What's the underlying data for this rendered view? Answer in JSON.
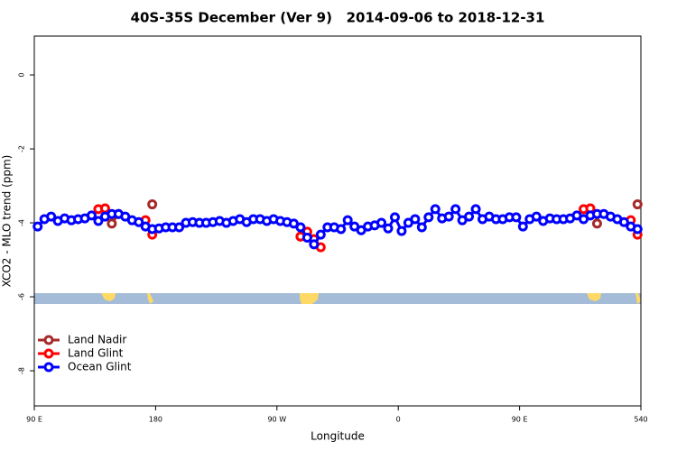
{
  "chart_data": {
    "type": "line",
    "title": "40S-35S December (Ver 9)   2014-09-06 to 2018-12-31",
    "xlabel": "Longitude",
    "ylabel": "XCO2 - MLO trend (ppm)",
    "x": [
      92.5,
      97.5,
      102.5,
      107.5,
      112.5,
      117.5,
      122.5,
      127.5,
      132.5,
      137.5,
      142.5,
      147.5,
      152.5,
      157.5,
      162.5,
      167.5,
      172.5,
      177.5,
      182.5,
      187.5,
      192.5,
      197.5,
      202.5,
      207.5,
      212.5,
      217.5,
      222.5,
      227.5,
      232.5,
      237.5,
      242.5,
      247.5,
      252.5,
      257.5,
      262.5,
      267.5,
      272.5,
      277.5,
      282.5,
      287.5,
      292.5,
      297.5,
      302.5,
      307.5,
      312.5,
      317.5,
      322.5,
      327.5,
      332.5,
      337.5,
      342.5,
      347.5,
      352.5,
      357.5,
      362.5,
      367.5,
      372.5,
      377.5,
      382.5,
      387.5,
      392.5,
      397.5,
      402.5,
      407.5,
      412.5,
      417.5,
      422.5,
      427.5,
      432.5,
      437.5,
      442.5,
      447.5,
      452.5,
      457.5,
      462.5,
      467.5,
      472.5,
      477.5,
      482.5,
      487.5,
      492.5,
      497.5,
      502.5,
      507.5,
      512.5,
      517.5,
      522.5,
      527.5,
      532.5,
      537.5
    ],
    "series": [
      {
        "name": "Land Nadir",
        "color": "#a52a2a",
        "values": [
          null,
          null,
          null,
          null,
          null,
          null,
          null,
          null,
          null,
          null,
          null,
          -4.02,
          -3.76,
          null,
          null,
          null,
          null,
          -3.5,
          null,
          null,
          null,
          null,
          null,
          null,
          null,
          null,
          null,
          null,
          null,
          null,
          null,
          null,
          null,
          null,
          null,
          null,
          null,
          null,
          null,
          -4.37,
          null,
          null,
          null,
          null,
          null,
          null,
          null,
          null,
          null,
          null,
          null,
          null,
          null,
          null,
          null,
          null,
          null,
          null,
          null,
          null,
          null,
          null,
          null,
          null,
          null,
          null,
          null,
          null,
          null,
          null,
          null,
          null,
          null,
          null,
          null,
          null,
          null,
          null,
          null,
          null,
          null,
          null,
          null,
          -4.02,
          null,
          null,
          null,
          null,
          null,
          -3.5
        ]
      },
      {
        "name": "Land Glint",
        "color": "#ff0000",
        "values": [
          null,
          null,
          null,
          null,
          null,
          null,
          null,
          null,
          null,
          -3.63,
          -3.61,
          null,
          null,
          null,
          null,
          null,
          -3.93,
          -4.32,
          null,
          null,
          null,
          null,
          null,
          null,
          null,
          null,
          null,
          null,
          null,
          null,
          null,
          null,
          null,
          null,
          null,
          null,
          null,
          null,
          null,
          -4.37,
          -4.24,
          -4.44,
          -4.66,
          null,
          null,
          null,
          null,
          null,
          null,
          null,
          null,
          null,
          null,
          null,
          null,
          null,
          null,
          null,
          null,
          null,
          null,
          null,
          null,
          null,
          null,
          null,
          null,
          null,
          null,
          null,
          null,
          null,
          null,
          null,
          null,
          null,
          null,
          null,
          null,
          null,
          null,
          -3.63,
          -3.61,
          null,
          null,
          null,
          null,
          null,
          -3.93,
          -4.32
        ]
      },
      {
        "name": "Ocean Glint",
        "color": "#0000ff",
        "values": [
          -4.1,
          -3.9,
          -3.83,
          -3.95,
          -3.88,
          -3.93,
          -3.9,
          -3.88,
          -3.8,
          -3.95,
          -3.83,
          -3.76,
          -3.76,
          -3.83,
          -3.93,
          -3.98,
          -4.1,
          -4.17,
          -4.15,
          -4.12,
          -4.12,
          -4.12,
          -4.0,
          -3.98,
          -4.0,
          -4.0,
          -3.98,
          -3.95,
          -4.0,
          -3.95,
          -3.9,
          -3.98,
          -3.9,
          -3.9,
          -3.95,
          -3.9,
          -3.95,
          -3.98,
          -4.02,
          -4.12,
          -4.4,
          -4.58,
          -4.32,
          -4.12,
          -4.12,
          -4.17,
          -3.93,
          -4.1,
          -4.2,
          -4.1,
          -4.07,
          -4.0,
          -4.15,
          -3.85,
          -4.22,
          -4.0,
          -3.9,
          -4.12,
          -3.85,
          -3.63,
          -3.88,
          -3.83,
          -3.63,
          -3.93,
          -3.83,
          -3.63,
          -3.9,
          -3.83,
          -3.9,
          -3.9,
          -3.85,
          -3.85,
          -4.1,
          -3.9,
          -3.83,
          -3.95,
          -3.88,
          -3.9,
          -3.9,
          -3.88,
          -3.8,
          -3.9,
          -3.8,
          -3.76,
          -3.76,
          -3.83,
          -3.9,
          -3.98,
          -4.1,
          -4.17
        ]
      }
    ],
    "xlim": [
      90,
      540
    ],
    "xticks": [
      {
        "value": 90,
        "label": "90 E"
      },
      180,
      {
        "value": 270,
        "label": "90 W"
      },
      {
        "value": 360,
        "label": "0"
      },
      {
        "value": 450,
        "label": "90 E"
      },
      540
    ],
    "ylim": [
      -8.95,
      1.05
    ],
    "yticks": [
      0,
      -2,
      -4,
      -6,
      -8
    ],
    "legend": "bottomleft"
  }
}
